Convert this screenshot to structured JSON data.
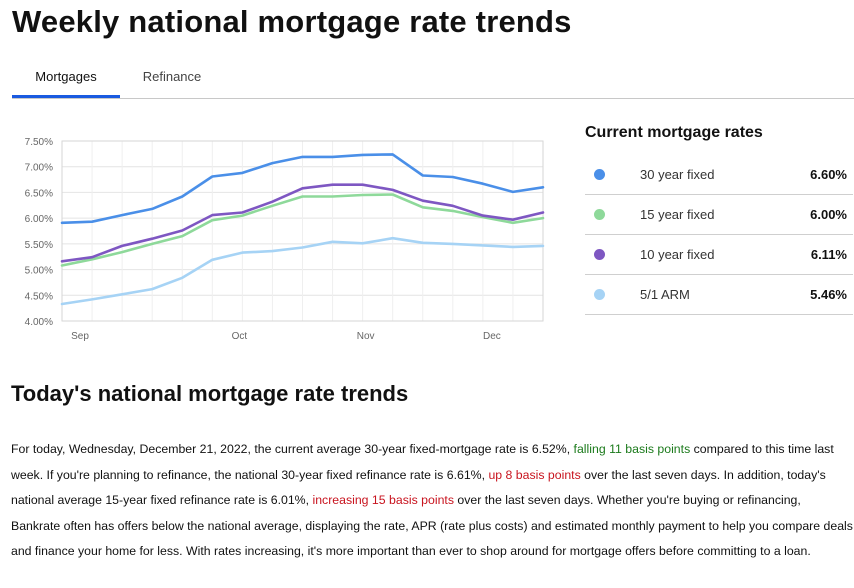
{
  "page": {
    "title": "Weekly national mortgage rate trends"
  },
  "tabs": [
    {
      "label": "Mortgages",
      "active": true
    },
    {
      "label": "Refinance",
      "active": false
    }
  ],
  "chart_data": {
    "type": "line",
    "x": [
      1,
      2,
      3,
      4,
      5,
      6,
      7,
      8,
      9,
      10,
      11,
      12,
      13,
      14,
      15,
      16,
      17
    ],
    "x_tick_labels": [
      {
        "label": "Sep",
        "x": 1.6
      },
      {
        "label": "Oct",
        "x": 6.9
      },
      {
        "label": "Nov",
        "x": 11.1
      },
      {
        "label": "Dec",
        "x": 15.3
      }
    ],
    "y_tick_labels": [
      "4.00%",
      "4.50%",
      "5.00%",
      "5.50%",
      "6.00%",
      "6.50%",
      "7.00%",
      "7.50%"
    ],
    "ylim": [
      4.0,
      7.5
    ],
    "grid": true,
    "colors": [
      "#4a8fe8",
      "#8ed99a",
      "#7e57c2",
      "#a6d3f5"
    ],
    "series": [
      {
        "name": "30 year fixed",
        "values": [
          5.91,
          5.93,
          6.06,
          6.18,
          6.42,
          6.81,
          6.88,
          7.07,
          7.19,
          7.19,
          7.23,
          7.24,
          6.83,
          6.8,
          6.67,
          6.51,
          6.6
        ]
      },
      {
        "name": "15 year fixed",
        "values": [
          5.08,
          5.2,
          5.34,
          5.5,
          5.65,
          5.96,
          6.05,
          6.24,
          6.42,
          6.42,
          6.45,
          6.46,
          6.21,
          6.14,
          6.02,
          5.91,
          6.0
        ]
      },
      {
        "name": "10 year fixed",
        "values": [
          5.16,
          5.24,
          5.46,
          5.6,
          5.76,
          6.06,
          6.11,
          6.32,
          6.58,
          6.65,
          6.65,
          6.55,
          6.34,
          6.24,
          6.05,
          5.97,
          6.11
        ]
      },
      {
        "name": "5/1 ARM",
        "values": [
          4.33,
          4.42,
          4.52,
          4.62,
          4.84,
          5.19,
          5.33,
          5.36,
          5.43,
          5.54,
          5.51,
          5.61,
          5.52,
          5.5,
          5.47,
          5.44,
          5.46
        ]
      }
    ]
  },
  "current_rates": {
    "title": "Current mortgage rates",
    "rows": [
      {
        "label": "30 year fixed",
        "value": "6.60%",
        "color": "#4a8fe8"
      },
      {
        "label": "15 year fixed",
        "value": "6.00%",
        "color": "#8ed99a"
      },
      {
        "label": "10 year fixed",
        "value": "6.11%",
        "color": "#7e57c2"
      },
      {
        "label": "5/1 ARM",
        "value": "5.46%",
        "color": "#a6d3f5"
      }
    ]
  },
  "trends": {
    "title": "Today's national mortgage rate trends",
    "p1": "For today, Wednesday, December 21, 2022, the current average 30-year fixed-mortgage rate is 6.52%, ",
    "p1_highlight": "falling 11 basis points",
    "p2": " compared to this time last week. If you're planning to refinance, the national 30-year fixed refinance rate is 6.61%, ",
    "p2_highlight": "up 8 basis points",
    "p3": " over the last seven days. In addition, today's national average 15-year fixed refinance rate is 6.01%, ",
    "p3_highlight": "increasing 15 basis points",
    "p4": " over the last seven days. Whether you're buying or refinancing, Bankrate often has offers below the national average, displaying the rate, APR (rate plus costs) and estimated monthly payment to help you compare deals and finance your home for less. With rates increasing, it's more important than ever to shop around for mortgage offers before committing to a loan."
  }
}
